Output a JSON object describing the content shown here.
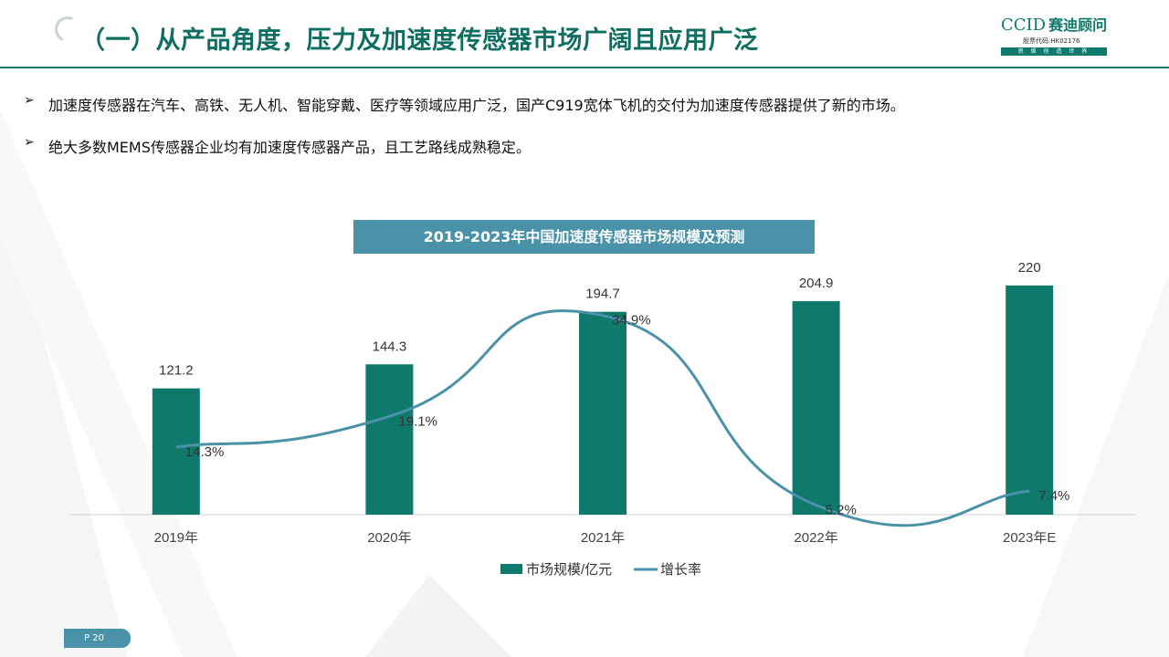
{
  "header": {
    "title": "（一）从产品角度，压力及加速度传感器市场广阔且应用广泛",
    "logo_brand": "CCID",
    "logo_name": "赛迪顾问",
    "logo_code": "股票代码:HK02176",
    "logo_slogan": "思 维 创 造 世 界"
  },
  "bullets": [
    {
      "icon": "arrow-right-icon",
      "text": "加速度传感器在汽车、高铁、无人机、智能穿戴、医疗等领域应用广泛，国产C919宽体飞机的交付为加速度传感器提供了新的市场。"
    },
    {
      "icon": "arrow-right-icon",
      "text": "绝大多数MEMS传感器企业均有加速度传感器产品，且工艺路线成熟稳定。"
    }
  ],
  "colors": {
    "bar": "#0f7a6c",
    "line": "#4a92a8",
    "title_bg": "#4a92a8",
    "title_text": "#0f6e62"
  },
  "chart_data": {
    "type": "bar",
    "title": "2019-2023年中国加速度传感器市场规模及预测",
    "categories": [
      "2019年",
      "2020年",
      "2021年",
      "2022年",
      "2023年E"
    ],
    "series": [
      {
        "name": "市场规模/亿元",
        "type": "bar",
        "values": [
          121.2,
          144.3,
          194.7,
          204.9,
          220
        ],
        "labels": [
          "121.2",
          "144.3",
          "194.7",
          "204.9",
          "220"
        ]
      },
      {
        "name": "增长率",
        "type": "line",
        "smooth": true,
        "values": [
          14.3,
          19.1,
          34.9,
          5.2,
          7.4
        ],
        "labels": [
          "14.3%",
          "19.1%",
          "34.9%",
          "5.2%",
          "7.4%"
        ]
      }
    ],
    "ylim": [
      0,
      240
    ],
    "y2lim": [
      0,
      40
    ],
    "legend": "bottom",
    "grid": false
  },
  "footer": {
    "page": "P 20"
  }
}
